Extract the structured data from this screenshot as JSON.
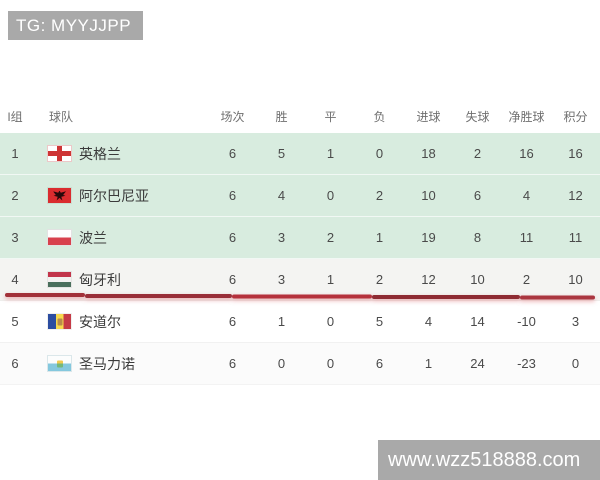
{
  "top_banner": {
    "text": "TG: MYYJJPP"
  },
  "bottom_banner": {
    "text": "www.wzz518888.com"
  },
  "colors": {
    "banner_gray": "#a9a9a9",
    "qualification_green": "#d8ecdf",
    "line_red": "#a8333c"
  },
  "table": {
    "headers": [
      "I组",
      "球队",
      "场次",
      "胜",
      "平",
      "负",
      "进球",
      "失球",
      "净胜球",
      "积分"
    ],
    "rows": [
      {
        "rank": "1",
        "team": "英格兰",
        "flag": "england",
        "zone": "green",
        "played": "6",
        "win": "5",
        "draw": "1",
        "loss": "0",
        "gf": "18",
        "ga": "2",
        "gd": "16",
        "pts": "16"
      },
      {
        "rank": "2",
        "team": "阿尔巴尼亚",
        "flag": "albania",
        "zone": "green",
        "played": "6",
        "win": "4",
        "draw": "0",
        "loss": "2",
        "gf": "10",
        "ga": "6",
        "gd": "4",
        "pts": "12"
      },
      {
        "rank": "3",
        "team": "波兰",
        "flag": "poland",
        "zone": "green",
        "played": "6",
        "win": "3",
        "draw": "2",
        "loss": "1",
        "gf": "19",
        "ga": "8",
        "gd": "11",
        "pts": "11"
      },
      {
        "rank": "4",
        "team": "匈牙利",
        "flag": "hungary",
        "zone": "light",
        "played": "6",
        "win": "3",
        "draw": "1",
        "loss": "2",
        "gf": "12",
        "ga": "10",
        "gd": "2",
        "pts": "10"
      },
      {
        "rank": "5",
        "team": "安道尔",
        "flag": "andorra",
        "zone": "white",
        "played": "6",
        "win": "1",
        "draw": "0",
        "loss": "5",
        "gf": "4",
        "ga": "14",
        "gd": "-10",
        "pts": "3"
      },
      {
        "rank": "6",
        "team": "圣马力诺",
        "flag": "sanmarino",
        "zone": "gray",
        "played": "6",
        "win": "0",
        "draw": "0",
        "loss": "6",
        "gf": "1",
        "ga": "24",
        "gd": "-23",
        "pts": "0"
      }
    ]
  }
}
